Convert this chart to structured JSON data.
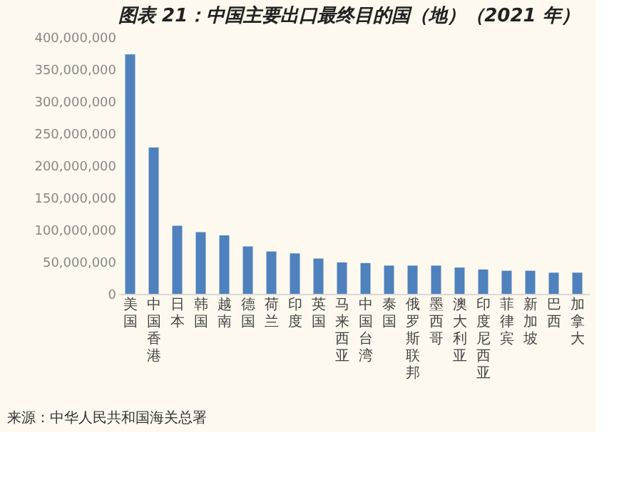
{
  "chart_data": {
    "type": "bar",
    "title": "图表 21：中国主要出口最终目的国（地）（2021 年）",
    "categories": [
      "美国",
      "中国香港",
      "日本",
      "韩国",
      "越南",
      "德国",
      "荷兰",
      "印度",
      "英国",
      "马来西亚",
      "中国台湾",
      "泰国",
      "俄罗斯联邦",
      "墨西哥",
      "澳大利亚",
      "印度尼西亚",
      "菲律宾",
      "新加坡",
      "巴西",
      "加拿大"
    ],
    "values": [
      373000000,
      228000000,
      106000000,
      96000000,
      91000000,
      74000000,
      66000000,
      63000000,
      55000000,
      49000000,
      48000000,
      44000000,
      44000000,
      44000000,
      41000000,
      38000000,
      36000000,
      36000000,
      33000000,
      33000000
    ],
    "color": "#4f81bd",
    "ylim": [
      0,
      400000000
    ],
    "yticks": [
      0,
      {
        "value": 50000000,
        "label": "50,000,000"
      },
      {
        "value": 100000000,
        "label": "100,000,000"
      },
      {
        "value": 150000000,
        "label": "150,000,000"
      },
      {
        "value": 200000000,
        "label": "200,000,000"
      },
      {
        "value": 250000000,
        "label": "250,000,000"
      },
      {
        "value": 300000000,
        "label": "300,000,000"
      },
      {
        "value": 350000000,
        "label": "350,000,000"
      },
      {
        "value": 400000000,
        "label": "400,000,000"
      }
    ],
    "grid": false,
    "annotations": [
      "来源：中华人民共和国海关总署"
    ]
  }
}
